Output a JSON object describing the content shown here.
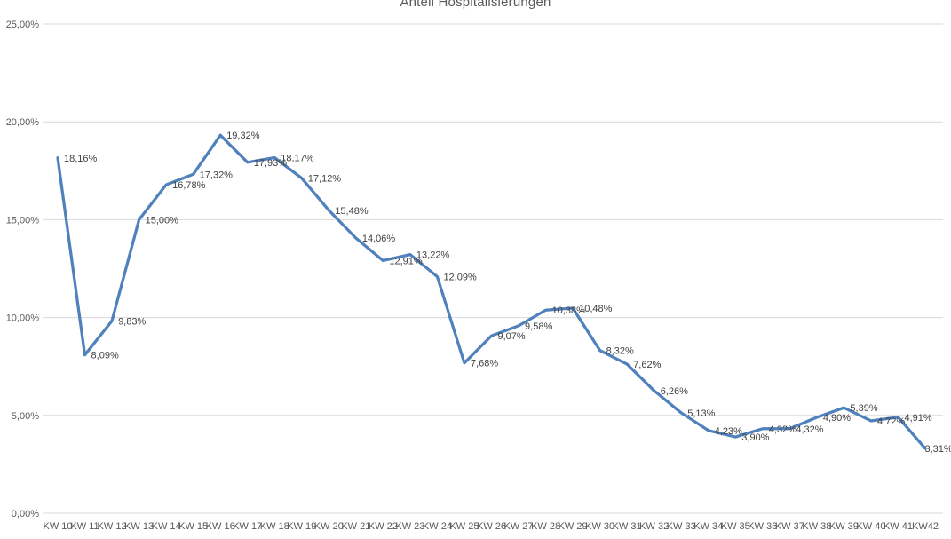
{
  "page": {
    "title": "Anteil Hospitalisierungen"
  },
  "chart_data": {
    "type": "line",
    "title": "Anteil Hospitalisierungen",
    "categories": [
      "KW 10",
      "KW 11",
      "KW 12",
      "KW 13",
      "KW 14",
      "KW 15",
      "KW 16",
      "KW 17",
      "KW 18",
      "KW 19",
      "KW 20",
      "KW 21",
      "KW 22",
      "KW 23",
      "KW 24",
      "KW 25",
      "KW 26",
      "KW 27",
      "KW 28",
      "KW 29",
      "KW 30",
      "KW 31",
      "KW 32",
      "KW 33",
      "KW 34",
      "KW 35",
      "KW 36",
      "KW 37",
      "KW 38",
      "KW 39",
      "KW 40",
      "KW 41",
      "KW42"
    ],
    "values": [
      18.16,
      8.09,
      9.83,
      15.0,
      16.78,
      17.32,
      19.32,
      17.93,
      18.17,
      17.12,
      15.48,
      14.06,
      12.91,
      13.22,
      12.09,
      7.68,
      9.07,
      9.58,
      10.38,
      10.48,
      8.32,
      7.62,
      6.26,
      5.13,
      4.23,
      3.9,
      4.32,
      4.32,
      4.9,
      5.39,
      4.72,
      4.91,
      3.31
    ],
    "data_labels": [
      "18,16%",
      "8,09%",
      "9,83%",
      "15,00%",
      "16,78%",
      "17,32%",
      "19,32%",
      "17,93%",
      "18,17%",
      "17,12%",
      "15,48%",
      "14,06%",
      "12,91%",
      "13,22%",
      "12,09%",
      "7,68%",
      "9,07%",
      "9,58%",
      "10,38%",
      "10,48%",
      "8,32%",
      "7,62%",
      "6,26%",
      "5,13%",
      "4,23%",
      "3,90%",
      "4,32%",
      "4,32%",
      "4,90%",
      "5,39%",
      "4,72%",
      "4,91%",
      "3,31%"
    ],
    "y_ticks": [
      "0,00%",
      "5,00%",
      "10,00%",
      "15,00%",
      "20,00%",
      "25,00%"
    ],
    "xlabel": "",
    "ylabel": "",
    "ylim": [
      0,
      25
    ],
    "grid": "horizontal",
    "legend": "none",
    "data_label_position": "right",
    "colors": {
      "line": "#4F81BD",
      "gridline": "#D9D9D9",
      "axis_text": "#595959",
      "data_label_text": "#404040",
      "title_text": "#595959",
      "background": "#FFFFFF"
    }
  }
}
